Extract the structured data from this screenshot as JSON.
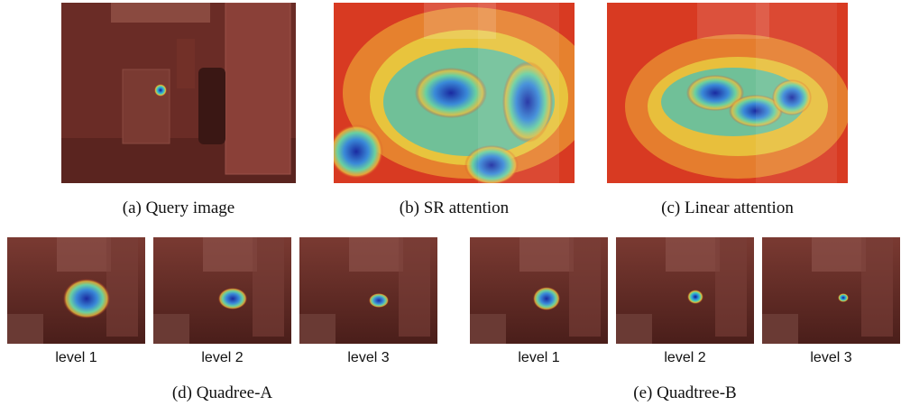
{
  "figure": {
    "top_row": [
      {
        "caption": "(a) Query image",
        "heatmap": "single-point"
      },
      {
        "caption": "(b) SR attention",
        "heatmap": "broad-diffuse"
      },
      {
        "caption": "(c) Linear attention",
        "heatmap": "broad-diffuse"
      }
    ],
    "quadtree_a": {
      "caption": "(d) Quadree-A",
      "levels": [
        {
          "label": "level 1"
        },
        {
          "label": "level 2"
        },
        {
          "label": "level 3"
        }
      ]
    },
    "quadtree_b": {
      "caption": "(e) Quadtree-B",
      "levels": [
        {
          "label": "level 1"
        },
        {
          "label": "level 2"
        },
        {
          "label": "level 3"
        }
      ]
    },
    "colors": {
      "overlay_red": "#8a2a22",
      "hot": "#d73020",
      "cold": "#1a2a9a"
    }
  }
}
